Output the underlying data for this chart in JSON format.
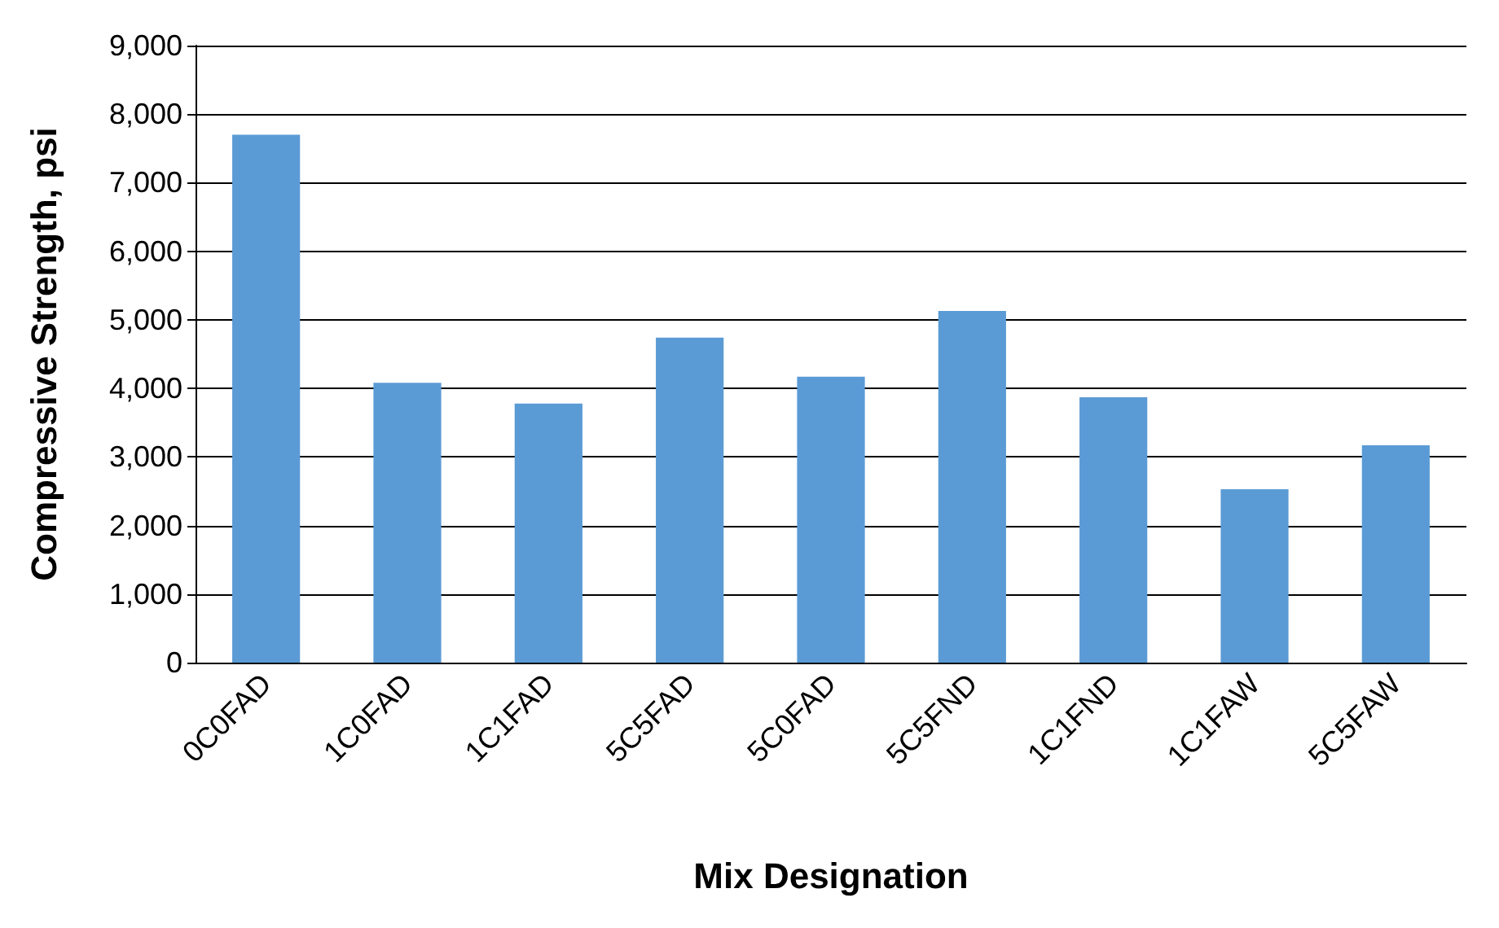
{
  "chart_data": {
    "type": "bar",
    "xlabel": "Mix Designation",
    "ylabel": "Compressive Strength, psi",
    "categories": [
      "0C0FAD",
      "1C0FAD",
      "1C1FAD",
      "5C5FAD",
      "5C0FAD",
      "5C5FND",
      "1C1FND",
      "1C1FAW",
      "5C5FAW"
    ],
    "values": [
      7700,
      4080,
      3780,
      4740,
      4170,
      5130,
      3870,
      2530,
      3170
    ],
    "color": "#5b9bd5",
    "ylim": [
      0,
      9000
    ],
    "yticks": [
      {
        "value": 0,
        "label": "0"
      },
      {
        "value": 1000,
        "label": "1,000"
      },
      {
        "value": 2000,
        "label": "2,000"
      },
      {
        "value": 3000,
        "label": "3,000"
      },
      {
        "value": 4000,
        "label": "4,000"
      },
      {
        "value": 5000,
        "label": "5,000"
      },
      {
        "value": 6000,
        "label": "6,000"
      },
      {
        "value": 7000,
        "label": "7,000"
      },
      {
        "value": 8000,
        "label": "8,000"
      },
      {
        "value": 9000,
        "label": "9,000"
      }
    ],
    "grid": true
  }
}
